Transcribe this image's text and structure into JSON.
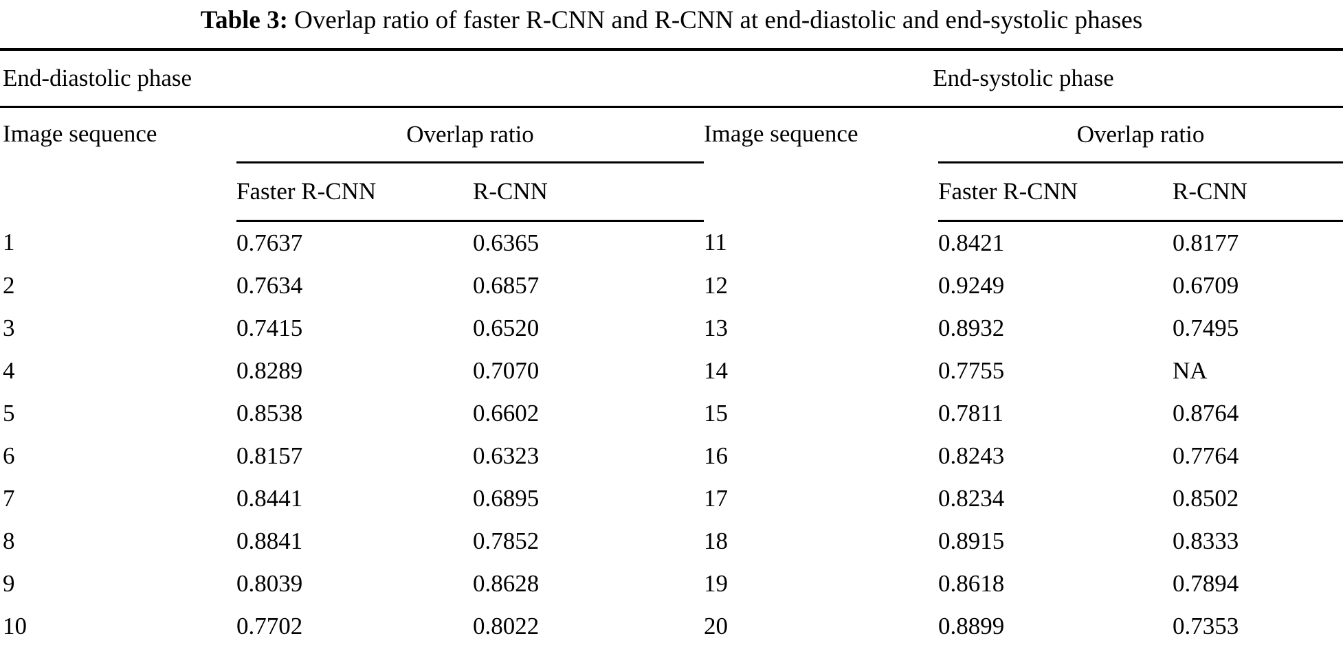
{
  "caption": {
    "label": "Table 3:",
    "text": " Overlap ratio of faster R-CNN and R-CNN at end-diastolic and end-systolic phases"
  },
  "table": {
    "left": {
      "phase": "End-diastolic phase",
      "image_sequence": "Image sequence",
      "overlap_ratio": "Overlap ratio",
      "faster_rcnn": "Faster R-CNN",
      "rcnn": "R-CNN"
    },
    "right": {
      "phase": "End-systolic phase",
      "image_sequence": "Image sequence",
      "overlap_ratio": "Overlap ratio",
      "faster_rcnn": "Faster R-CNN",
      "rcnn": "R-CNN"
    },
    "rows": [
      {
        "seq_left": "1",
        "faster_left": "0.7637",
        "rcnn_left": "0.6365",
        "seq_right": "11",
        "faster_right": "0.8421",
        "rcnn_right": "0.8177"
      },
      {
        "seq_left": "2",
        "faster_left": "0.7634",
        "rcnn_left": "0.6857",
        "seq_right": "12",
        "faster_right": "0.9249",
        "rcnn_right": "0.6709"
      },
      {
        "seq_left": "3",
        "faster_left": "0.7415",
        "rcnn_left": "0.6520",
        "seq_right": "13",
        "faster_right": "0.8932",
        "rcnn_right": "0.7495"
      },
      {
        "seq_left": "4",
        "faster_left": "0.8289",
        "rcnn_left": "0.7070",
        "seq_right": "14",
        "faster_right": "0.7755",
        "rcnn_right": "NA"
      },
      {
        "seq_left": "5",
        "faster_left": "0.8538",
        "rcnn_left": "0.6602",
        "seq_right": "15",
        "faster_right": "0.7811",
        "rcnn_right": "0.8764"
      },
      {
        "seq_left": "6",
        "faster_left": "0.8157",
        "rcnn_left": "0.6323",
        "seq_right": "16",
        "faster_right": "0.8243",
        "rcnn_right": "0.7764"
      },
      {
        "seq_left": "7",
        "faster_left": "0.8441",
        "rcnn_left": "0.6895",
        "seq_right": "17",
        "faster_right": "0.8234",
        "rcnn_right": "0.8502"
      },
      {
        "seq_left": "8",
        "faster_left": "0.8841",
        "rcnn_left": "0.7852",
        "seq_right": "18",
        "faster_right": "0.8915",
        "rcnn_right": "0.8333"
      },
      {
        "seq_left": "9",
        "faster_left": "0.8039",
        "rcnn_left": "0.8628",
        "seq_right": "19",
        "faster_right": "0.8618",
        "rcnn_right": "0.7894"
      },
      {
        "seq_left": "10",
        "faster_left": "0.7702",
        "rcnn_left": "0.8022",
        "seq_right": "20",
        "faster_right": "0.8899",
        "rcnn_right": "0.7353"
      }
    ]
  },
  "colors": {
    "text": "#000000",
    "background": "#ffffff",
    "rule": "#000000"
  }
}
